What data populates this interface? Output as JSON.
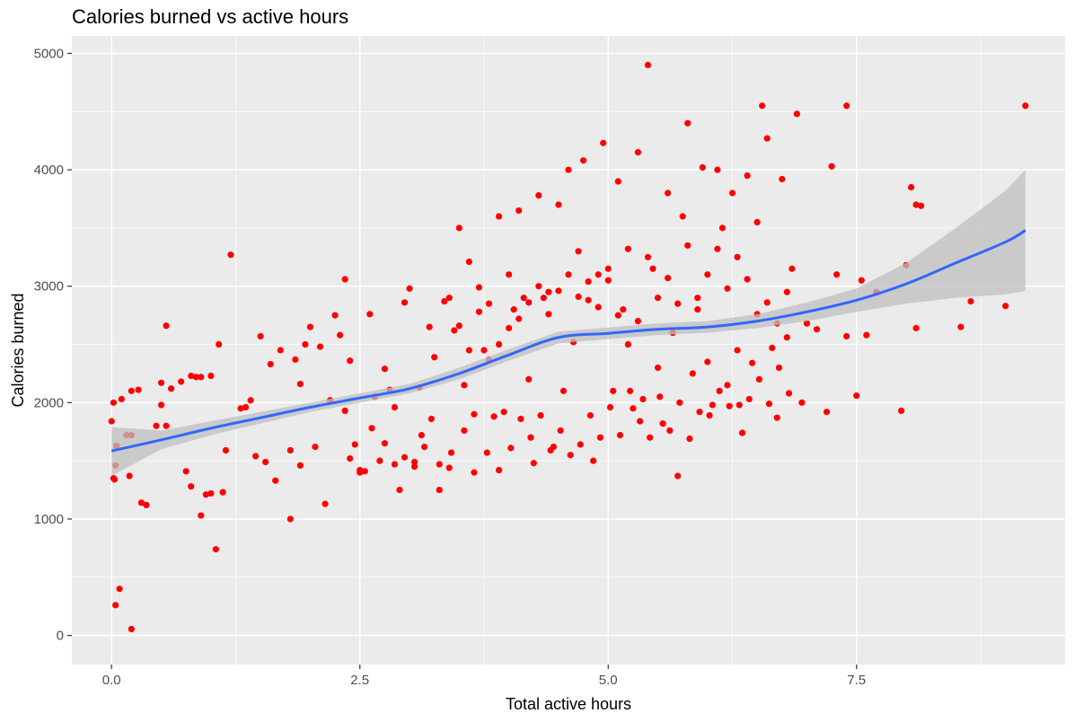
{
  "chart_data": {
    "type": "scatter",
    "title": "Calories burned vs active hours",
    "xlabel": "Total active hours",
    "ylabel": "Calories burned",
    "xlim": [
      -0.4,
      9.6
    ],
    "ylim": [
      -250,
      5150
    ],
    "x_ticks": [
      0.0,
      2.5,
      5.0,
      7.5
    ],
    "x_tick_labels": [
      "0.0",
      "2.5",
      "5.0",
      "7.5"
    ],
    "y_ticks": [
      0,
      1000,
      2000,
      3000,
      4000,
      5000
    ],
    "y_tick_labels": [
      "0",
      "1000",
      "2000",
      "3000",
      "4000",
      "5000"
    ],
    "grid": true,
    "panel_color": "#ebebeb",
    "point_color": "#ff0000",
    "smooth_color": "#3366ff",
    "ribbon_color": "#bfbfbf",
    "smooth": {
      "x": [
        0.0,
        0.5,
        1.0,
        1.5,
        2.0,
        2.5,
        3.0,
        3.5,
        4.0,
        4.5,
        5.0,
        5.5,
        6.0,
        6.5,
        7.0,
        7.5,
        8.0,
        8.5,
        9.0,
        9.2
      ],
      "y": [
        1585,
        1680,
        1780,
        1870,
        1960,
        2040,
        2120,
        2250,
        2410,
        2560,
        2595,
        2630,
        2650,
        2700,
        2780,
        2880,
        3020,
        3200,
        3380,
        3480
      ],
      "lower": [
        1370,
        1600,
        1720,
        1820,
        1920,
        2000,
        2080,
        2200,
        2360,
        2510,
        2545,
        2580,
        2600,
        2640,
        2700,
        2780,
        2850,
        2900,
        2930,
        2960
      ],
      "upper": [
        1790,
        1760,
        1840,
        1920,
        2000,
        2080,
        2160,
        2300,
        2460,
        2610,
        2645,
        2680,
        2700,
        2760,
        2860,
        2980,
        3200,
        3500,
        3820,
        4000
      ]
    },
    "points": [
      [
        0.02,
        2000
      ],
      [
        0.0,
        1840
      ],
      [
        0.05,
        1630
      ],
      [
        0.04,
        1460
      ],
      [
        0.02,
        1350
      ],
      [
        0.03,
        1340
      ],
      [
        0.08,
        400
      ],
      [
        0.04,
        260
      ],
      [
        0.2,
        55
      ],
      [
        0.1,
        2030
      ],
      [
        0.2,
        2100
      ],
      [
        0.27,
        2110
      ],
      [
        0.15,
        1720
      ],
      [
        0.2,
        1720
      ],
      [
        0.18,
        1370
      ],
      [
        0.3,
        1140
      ],
      [
        0.35,
        1120
      ],
      [
        0.5,
        2170
      ],
      [
        0.45,
        1800
      ],
      [
        0.5,
        1980
      ],
      [
        0.55,
        2660
      ],
      [
        0.6,
        2120
      ],
      [
        0.55,
        1800
      ],
      [
        0.7,
        2180
      ],
      [
        0.75,
        1410
      ],
      [
        0.8,
        2230
      ],
      [
        0.85,
        2220
      ],
      [
        0.9,
        2220
      ],
      [
        0.8,
        1280
      ],
      [
        0.9,
        1030
      ],
      [
        0.95,
        1210
      ],
      [
        1.0,
        1220
      ],
      [
        1.05,
        740
      ],
      [
        1.08,
        2500
      ],
      [
        1.12,
        1230
      ],
      [
        1.15,
        1590
      ],
      [
        1.2,
        3270
      ],
      [
        1.0,
        2230
      ],
      [
        1.3,
        1950
      ],
      [
        1.35,
        1960
      ],
      [
        1.4,
        2020
      ],
      [
        1.45,
        1540
      ],
      [
        1.5,
        2570
      ],
      [
        1.55,
        1490
      ],
      [
        1.6,
        2330
      ],
      [
        1.65,
        1330
      ],
      [
        1.7,
        2450
      ],
      [
        1.8,
        1590
      ],
      [
        1.85,
        2370
      ],
      [
        1.9,
        1460
      ],
      [
        1.9,
        2160
      ],
      [
        1.8,
        1000
      ],
      [
        1.95,
        2500
      ],
      [
        2.0,
        2650
      ],
      [
        2.05,
        1620
      ],
      [
        2.1,
        2480
      ],
      [
        2.15,
        1130
      ],
      [
        2.2,
        2020
      ],
      [
        2.25,
        2750
      ],
      [
        2.3,
        2580
      ],
      [
        2.35,
        3060
      ],
      [
        2.4,
        2360
      ],
      [
        2.35,
        1930
      ],
      [
        2.45,
        1640
      ],
      [
        2.5,
        1420
      ],
      [
        2.55,
        1410
      ],
      [
        2.6,
        2760
      ],
      [
        2.65,
        2050
      ],
      [
        2.7,
        1500
      ],
      [
        2.75,
        2290
      ],
      [
        2.8,
        2110
      ],
      [
        2.85,
        1960
      ],
      [
        2.9,
        1250
      ],
      [
        3.0,
        2980
      ],
      [
        2.95,
        2860
      ],
      [
        3.05,
        1490
      ],
      [
        3.1,
        2130
      ],
      [
        3.15,
        1620
      ],
      [
        3.2,
        2650
      ],
      [
        3.25,
        2390
      ],
      [
        3.3,
        1250
      ],
      [
        3.35,
        2870
      ],
      [
        3.4,
        1440
      ],
      [
        3.45,
        2620
      ],
      [
        3.5,
        3500
      ],
      [
        3.55,
        2150
      ],
      [
        3.6,
        3210
      ],
      [
        3.65,
        1400
      ],
      [
        3.7,
        2780
      ],
      [
        3.75,
        2450
      ],
      [
        3.8,
        2370
      ],
      [
        3.85,
        1880
      ],
      [
        3.9,
        3600
      ],
      [
        3.95,
        1920
      ],
      [
        4.0,
        3100
      ],
      [
        4.05,
        2800
      ],
      [
        4.1,
        3650
      ],
      [
        4.15,
        2900
      ],
      [
        4.2,
        2200
      ],
      [
        4.25,
        1480
      ],
      [
        4.3,
        3780
      ],
      [
        4.35,
        2900
      ],
      [
        4.4,
        2950
      ],
      [
        4.45,
        1620
      ],
      [
        4.5,
        3700
      ],
      [
        4.55,
        2100
      ],
      [
        4.6,
        4000
      ],
      [
        4.65,
        2520
      ],
      [
        4.7,
        3300
      ],
      [
        4.75,
        4080
      ],
      [
        4.8,
        2880
      ],
      [
        4.85,
        1500
      ],
      [
        4.9,
        3100
      ],
      [
        4.95,
        4230
      ],
      [
        5.0,
        3050
      ],
      [
        5.05,
        2100
      ],
      [
        5.1,
        3900
      ],
      [
        5.15,
        2800
      ],
      [
        5.2,
        3320
      ],
      [
        5.25,
        1950
      ],
      [
        5.3,
        4150
      ],
      [
        5.35,
        2030
      ],
      [
        5.4,
        4900
      ],
      [
        5.45,
        3150
      ],
      [
        5.5,
        2300
      ],
      [
        5.55,
        1820
      ],
      [
        5.6,
        3800
      ],
      [
        5.65,
        2600
      ],
      [
        5.7,
        1370
      ],
      [
        5.75,
        3600
      ],
      [
        5.8,
        4400
      ],
      [
        5.85,
        2250
      ],
      [
        5.9,
        2900
      ],
      [
        5.95,
        4020
      ],
      [
        6.0,
        2350
      ],
      [
        6.05,
        1980
      ],
      [
        6.1,
        4000
      ],
      [
        6.15,
        3500
      ],
      [
        6.2,
        2150
      ],
      [
        6.25,
        3800
      ],
      [
        6.3,
        2450
      ],
      [
        6.35,
        1740
      ],
      [
        6.4,
        3950
      ],
      [
        6.45,
        2340
      ],
      [
        6.5,
        3550
      ],
      [
        6.55,
        4550
      ],
      [
        6.6,
        4270
      ],
      [
        6.65,
        2470
      ],
      [
        6.7,
        1870
      ],
      [
        6.75,
        3920
      ],
      [
        6.8,
        2560
      ],
      [
        6.85,
        3150
      ],
      [
        6.9,
        4480
      ],
      [
        6.95,
        2000
      ],
      [
        7.0,
        2680
      ],
      [
        7.1,
        2630
      ],
      [
        7.2,
        1920
      ],
      [
        7.25,
        4030
      ],
      [
        7.3,
        3100
      ],
      [
        7.4,
        4550
      ],
      [
        7.4,
        2570
      ],
      [
        7.5,
        2060
      ],
      [
        7.55,
        3050
      ],
      [
        7.6,
        2580
      ],
      [
        7.7,
        2950
      ],
      [
        7.95,
        1930
      ],
      [
        8.0,
        3180
      ],
      [
        8.05,
        3850
      ],
      [
        8.1,
        3700
      ],
      [
        8.1,
        2640
      ],
      [
        8.15,
        3690
      ],
      [
        8.55,
        2650
      ],
      [
        8.65,
        2870
      ],
      [
        9.0,
        2830
      ],
      [
        9.2,
        4550
      ],
      [
        2.4,
        1520
      ],
      [
        2.5,
        1400
      ],
      [
        2.62,
        1780
      ],
      [
        2.75,
        1650
      ],
      [
        2.85,
        1470
      ],
      [
        2.95,
        1530
      ],
      [
        3.05,
        1450
      ],
      [
        3.12,
        1720
      ],
      [
        3.22,
        1860
      ],
      [
        3.3,
        1470
      ],
      [
        3.42,
        1570
      ],
      [
        3.55,
        1760
      ],
      [
        3.65,
        1900
      ],
      [
        3.78,
        1570
      ],
      [
        3.9,
        1420
      ],
      [
        4.02,
        1610
      ],
      [
        4.12,
        1860
      ],
      [
        4.22,
        1700
      ],
      [
        4.32,
        1890
      ],
      [
        4.42,
        1590
      ],
      [
        4.52,
        1760
      ],
      [
        4.62,
        1550
      ],
      [
        4.72,
        1640
      ],
      [
        4.82,
        1890
      ],
      [
        4.92,
        1700
      ],
      [
        5.02,
        1960
      ],
      [
        5.12,
        1720
      ],
      [
        5.22,
        2100
      ],
      [
        5.32,
        1840
      ],
      [
        5.42,
        1700
      ],
      [
        5.52,
        2050
      ],
      [
        5.62,
        1760
      ],
      [
        5.72,
        2000
      ],
      [
        5.82,
        1690
      ],
      [
        5.92,
        1920
      ],
      [
        6.02,
        1890
      ],
      [
        6.12,
        2100
      ],
      [
        6.22,
        1970
      ],
      [
        6.32,
        1980
      ],
      [
        6.42,
        2030
      ],
      [
        6.52,
        2200
      ],
      [
        6.62,
        1990
      ],
      [
        6.72,
        2300
      ],
      [
        6.82,
        2080
      ],
      [
        3.4,
        2900
      ],
      [
        3.5,
        2660
      ],
      [
        3.6,
        2450
      ],
      [
        3.7,
        2990
      ],
      [
        3.8,
        2850
      ],
      [
        3.9,
        2500
      ],
      [
        4.0,
        2640
      ],
      [
        4.1,
        2720
      ],
      [
        4.2,
        2860
      ],
      [
        4.3,
        3000
      ],
      [
        4.4,
        2760
      ],
      [
        4.5,
        2960
      ],
      [
        4.6,
        3100
      ],
      [
        4.7,
        2910
      ],
      [
        4.8,
        3040
      ],
      [
        4.9,
        2820
      ],
      [
        5.0,
        3150
      ],
      [
        5.1,
        2750
      ],
      [
        5.2,
        2500
      ],
      [
        5.3,
        2700
      ],
      [
        5.4,
        3250
      ],
      [
        5.5,
        2900
      ],
      [
        5.6,
        3070
      ],
      [
        5.7,
        2850
      ],
      [
        5.8,
        3350
      ],
      [
        5.9,
        2800
      ],
      [
        6.0,
        3100
      ],
      [
        6.1,
        3320
      ],
      [
        6.2,
        2980
      ],
      [
        6.3,
        3250
      ],
      [
        6.4,
        3060
      ],
      [
        6.5,
        2760
      ],
      [
        6.6,
        2860
      ],
      [
        6.7,
        2680
      ],
      [
        6.8,
        2950
      ]
    ]
  }
}
